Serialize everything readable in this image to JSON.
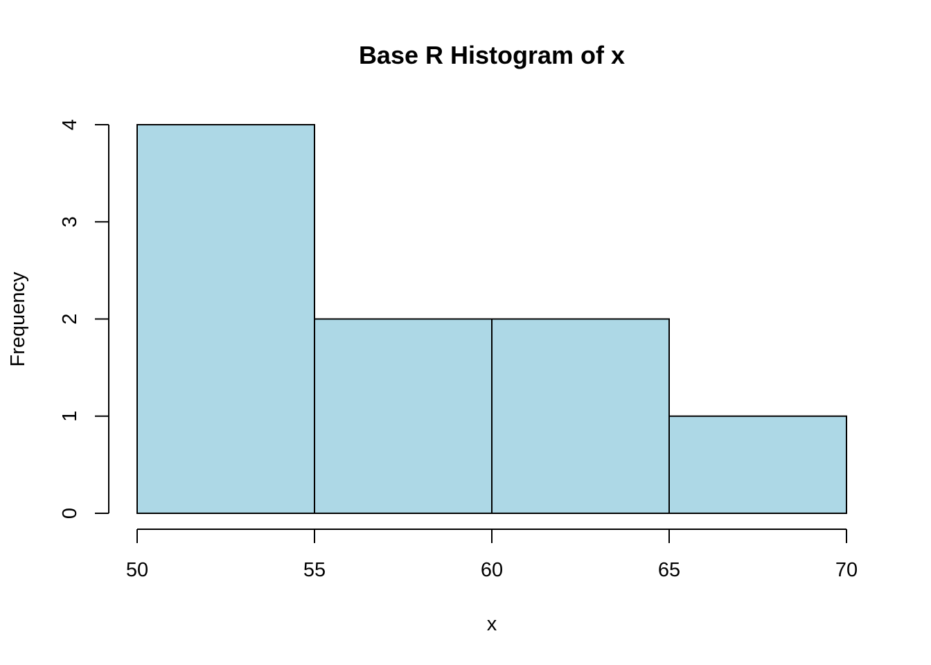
{
  "chart_data": {
    "type": "bar",
    "title": "Base R Histogram of x",
    "xlabel": "x",
    "ylabel": "Frequency",
    "bins": [
      {
        "start": 50,
        "end": 55,
        "count": 4
      },
      {
        "start": 55,
        "end": 60,
        "count": 2
      },
      {
        "start": 60,
        "end": 65,
        "count": 2
      },
      {
        "start": 65,
        "end": 70,
        "count": 1
      }
    ],
    "xlim": [
      50,
      70
    ],
    "ylim": [
      0,
      4
    ],
    "x_ticks": [
      "50",
      "55",
      "60",
      "65",
      "70"
    ],
    "y_ticks": [
      "0",
      "1",
      "2",
      "3",
      "4"
    ],
    "bar_color": "#ADD8E6",
    "bar_border_color": "#000000",
    "grid": false,
    "legend": "none"
  }
}
